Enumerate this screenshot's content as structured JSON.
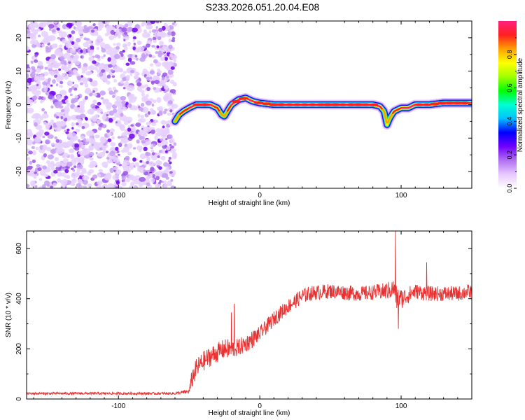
{
  "title": "S233.2026.051.20.04.E08",
  "chart_data": [
    {
      "type": "heatmap",
      "title": "S233.2026.051.20.04.E08",
      "xlabel": "Height of straight line (km)",
      "ylabel": "Frequency (Hz)",
      "xlim": [
        -165,
        150
      ],
      "ylim": [
        -25,
        25
      ],
      "xticks": [
        -100,
        0,
        100
      ],
      "xtick_labels": [
        "-100",
        "0",
        "100"
      ],
      "yticks": [
        -20,
        -10,
        0,
        10,
        20
      ],
      "ytick_labels": [
        "-20",
        "-10",
        "0",
        "10",
        "20"
      ],
      "noise_region_x": [
        -165,
        -60
      ],
      "ridge": {
        "x": [
          -60,
          -57,
          -54,
          -50,
          -45,
          -40,
          -35,
          -30,
          -27,
          -25,
          -23,
          -20,
          -15,
          -10,
          -5,
          0,
          10,
          20,
          30,
          40,
          50,
          60,
          70,
          80,
          85,
          88,
          90,
          92,
          95,
          100,
          105,
          110,
          120,
          130,
          140,
          150
        ],
        "y": [
          -5,
          -3,
          -2,
          -1,
          0,
          0,
          0,
          -1,
          -3,
          -3.5,
          -2,
          0,
          1.5,
          2,
          1,
          0.5,
          0,
          0,
          0,
          0,
          0,
          0,
          0,
          0,
          -0.5,
          -2,
          -6,
          -4,
          -2,
          -1,
          -1,
          0,
          0,
          0.5,
          0.5,
          0.5
        ],
        "amp": [
          0.5,
          0.6,
          0.7,
          0.8,
          0.9,
          1.0,
          0.9,
          0.7,
          0.5,
          0.5,
          0.6,
          0.85,
          0.9,
          0.9,
          0.85,
          0.9,
          1.0,
          0.95,
          0.9,
          0.95,
          1.0,
          0.95,
          1.0,
          0.9,
          0.8,
          0.5,
          0.4,
          0.5,
          0.7,
          0.8,
          0.85,
          0.9,
          0.95,
          1.0,
          1.0,
          0.95
        ]
      },
      "colorbar": {
        "label": "Normalized spectral amplitude",
        "range": [
          0,
          1
        ],
        "ticks": [
          0.0,
          0.2,
          0.4,
          0.6,
          0.8
        ],
        "tick_labels": [
          "0.0",
          "0.2",
          "0.4",
          "0.6",
          "0.8"
        ],
        "colors": [
          "#ffffff",
          "#e8c8ff",
          "#b070f0",
          "#7000ff",
          "#0000ff",
          "#00c0ff",
          "#00ffd0",
          "#00ff00",
          "#a0ff00",
          "#ffff00",
          "#ffa000",
          "#ff2020",
          "#ff2080"
        ]
      }
    },
    {
      "type": "line",
      "xlabel": "Height of straight line (km)",
      "ylabel": "SNR (10 * v/v)",
      "xlim": [
        -165,
        150
      ],
      "ylim": [
        0,
        670
      ],
      "xticks": [
        -100,
        0,
        100
      ],
      "xtick_labels": [
        "-100",
        "0",
        "100"
      ],
      "yticks": [
        0,
        200,
        400,
        600
      ],
      "ytick_labels": [
        "0",
        "200",
        "400",
        "600"
      ],
      "color": "#e83030",
      "envelope": {
        "x": [
          -165,
          -60,
          -50,
          -48,
          -45,
          -40,
          -35,
          -30,
          -25,
          -20,
          -15,
          -10,
          -5,
          0,
          5,
          10,
          15,
          20,
          25,
          30,
          35,
          40,
          50,
          60,
          70,
          80,
          90,
          95,
          97,
          100,
          110,
          120,
          130,
          140,
          150
        ],
        "y": [
          22,
          22,
          30,
          80,
          120,
          150,
          170,
          185,
          200,
          200,
          205,
          220,
          240,
          260,
          290,
          320,
          345,
          370,
          390,
          410,
          420,
          425,
          430,
          425,
          420,
          425,
          430,
          440,
          400,
          400,
          430,
          420,
          420,
          420,
          430
        ],
        "noise": [
          5,
          5,
          10,
          40,
          40,
          40,
          40,
          40,
          40,
          40,
          35,
          35,
          35,
          30,
          30,
          30,
          30,
          30,
          30,
          30,
          30,
          30,
          30,
          30,
          30,
          30,
          35,
          40,
          50,
          40,
          30,
          30,
          30,
          30,
          30
        ]
      },
      "spikes": [
        {
          "x": -18,
          "y": 380
        },
        {
          "x": -20,
          "y": 345
        },
        {
          "x": 96,
          "y": 670
        },
        {
          "x": 98,
          "y": 280
        },
        {
          "x": 118,
          "y": 545
        }
      ]
    }
  ]
}
